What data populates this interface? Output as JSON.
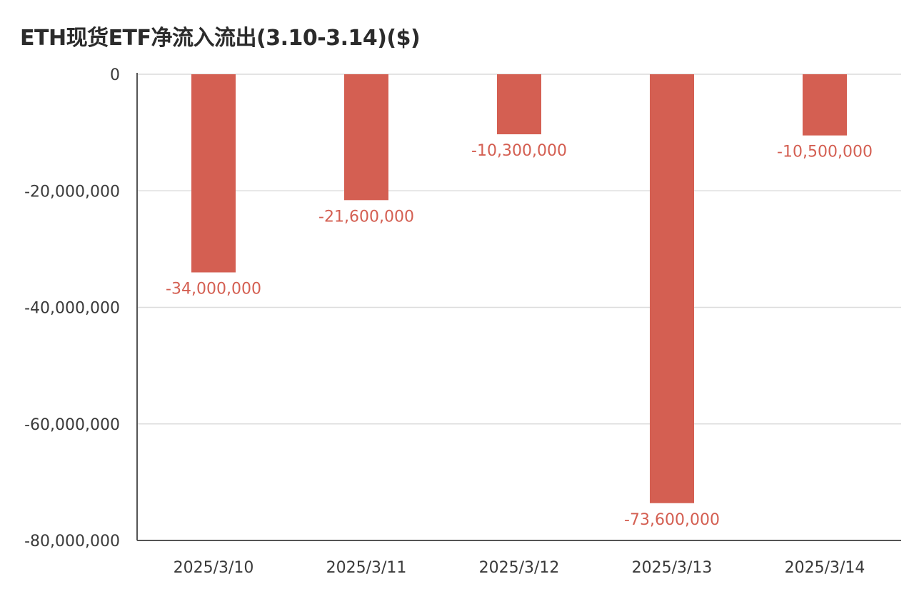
{
  "chart_data": {
    "type": "bar",
    "title": "ETH现货ETF净流入流出(3.10-3.14)($)",
    "categories": [
      "2025/3/10",
      "2025/3/11",
      "2025/3/12",
      "2025/3/13",
      "2025/3/14"
    ],
    "values": [
      -34000000,
      -21600000,
      -10300000,
      -73600000,
      -10500000
    ],
    "data_labels": [
      "-34,000,000",
      "-21,600,000",
      "-10,300,000",
      "-73,600,000",
      "-10,500,000"
    ],
    "ylim": [
      -80000000,
      0
    ],
    "yticks": [
      0,
      -20000000,
      -40000000,
      -60000000,
      -80000000
    ],
    "ytick_labels": [
      "0",
      "-20,000,000",
      "-40,000,000",
      "-60,000,000",
      "-80,000,000"
    ],
    "xlabel": "",
    "ylabel": "",
    "grid": true,
    "colors": {
      "bar": "#d45f52",
      "label": "#d45f52",
      "grid": "#dcdcdc",
      "axis": "#555555"
    }
  }
}
